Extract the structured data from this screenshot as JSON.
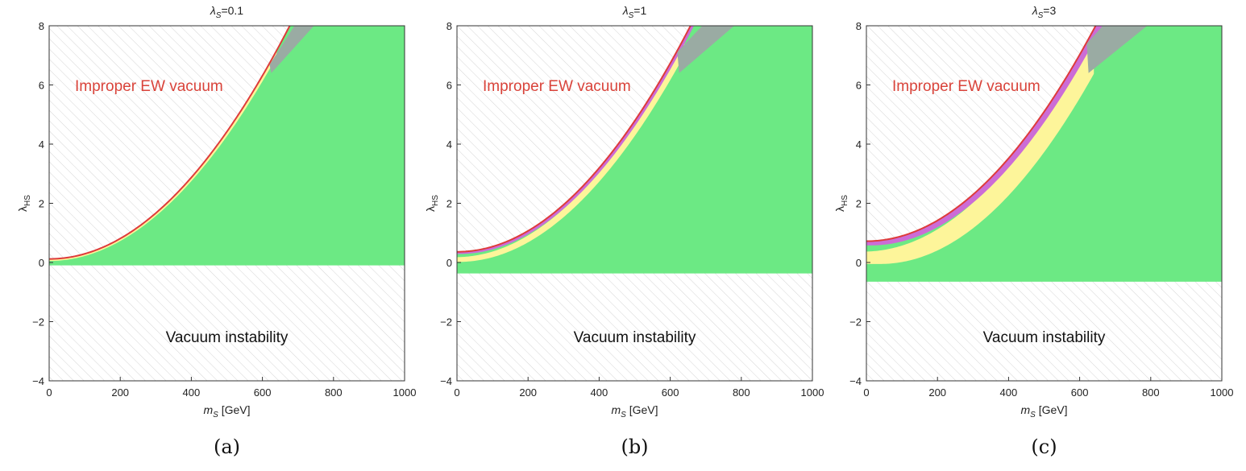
{
  "colors": {
    "allowed": "#6ce984",
    "resonance_band": "#cc6cd6",
    "yellow_band": "#fdf59a",
    "gray_region": "#9aaba3",
    "boundary": "#de3b3b",
    "hatch": "#d6d6d6",
    "improper_label": "#d9433a"
  },
  "chart_data": [
    {
      "type": "area",
      "panel": "a",
      "title": "λS=0.1",
      "title_main": "λ",
      "title_sub": "S",
      "title_rest": "=0.1",
      "xlabel_main": "m",
      "xlabel_sub": "S",
      "xlabel_rest": " [GeV]",
      "ylabel_main": "λ",
      "ylabel_sub": "HS",
      "xlim": [
        0,
        1000
      ],
      "ylim": [
        -4,
        8
      ],
      "xticks": [
        "0",
        "200",
        "400",
        "600",
        "800",
        "1000"
      ],
      "yticks": [
        "−4",
        "−2",
        "0",
        "2",
        "4",
        "6",
        "8"
      ],
      "lambda_s": 0.1,
      "stability_floor": -0.1,
      "boundary_intercept": 0.12,
      "boundary_coeff": 17.2,
      "yellow_intercept": 0.05,
      "band_width": 0.0,
      "yellow_gap_at_600": 0.0,
      "gray_top_start_x": 690,
      "gray_corner_x": 745,
      "improper_label": "Improper EW vacuum",
      "instability_label": "Vacuum instability",
      "caption": "(a)"
    },
    {
      "type": "area",
      "panel": "b",
      "title": "λS=1",
      "title_main": "λ",
      "title_sub": "S",
      "title_rest": "=1",
      "xlabel_main": "m",
      "xlabel_sub": "S",
      "xlabel_rest": " [GeV]",
      "ylabel_main": "λ",
      "ylabel_sub": "HS",
      "xlim": [
        0,
        1000
      ],
      "ylim": [
        -4,
        8
      ],
      "xticks": [
        "0",
        "200",
        "400",
        "600",
        "800",
        "1000"
      ],
      "yticks": [
        "−4",
        "−2",
        "0",
        "2",
        "4",
        "6",
        "8"
      ],
      "lambda_s": 1,
      "stability_floor": -0.37,
      "boundary_intercept": 0.36,
      "boundary_coeff": 17.7,
      "yellow_intercept": 0.02,
      "band_width": 0.18,
      "yellow_gap_at_600": 0.1,
      "gray_top_start_x": 690,
      "gray_corner_x": 780,
      "improper_label": "Improper EW vacuum",
      "instability_label": "Vacuum instability",
      "caption": "(b)"
    },
    {
      "type": "area",
      "panel": "c",
      "title": "λS=3",
      "title_main": "λ",
      "title_sub": "S",
      "title_rest": "=3",
      "xlabel_main": "m",
      "xlabel_sub": "S",
      "xlabel_rest": " [GeV]",
      "ylabel_main": "λ",
      "ylabel_sub": "HS",
      "xlim": [
        0,
        1000
      ],
      "ylim": [
        -4,
        8
      ],
      "xticks": [
        "0",
        "200",
        "400",
        "600",
        "800",
        "1000"
      ],
      "yticks": [
        "−4",
        "−2",
        "0",
        "2",
        "4",
        "6",
        "8"
      ],
      "lambda_s": 3,
      "stability_floor": -0.65,
      "boundary_intercept": 0.72,
      "boundary_coeff": 17.5,
      "yellow_intercept": 0.65,
      "band_width": 0.35,
      "yellow_gap_at_600": 0.25,
      "gray_top_start_x": 665,
      "gray_corner_x": 790,
      "improper_label": "Improper EW vacuum",
      "instability_label": "Vacuum instability",
      "caption": "(c)"
    }
  ]
}
